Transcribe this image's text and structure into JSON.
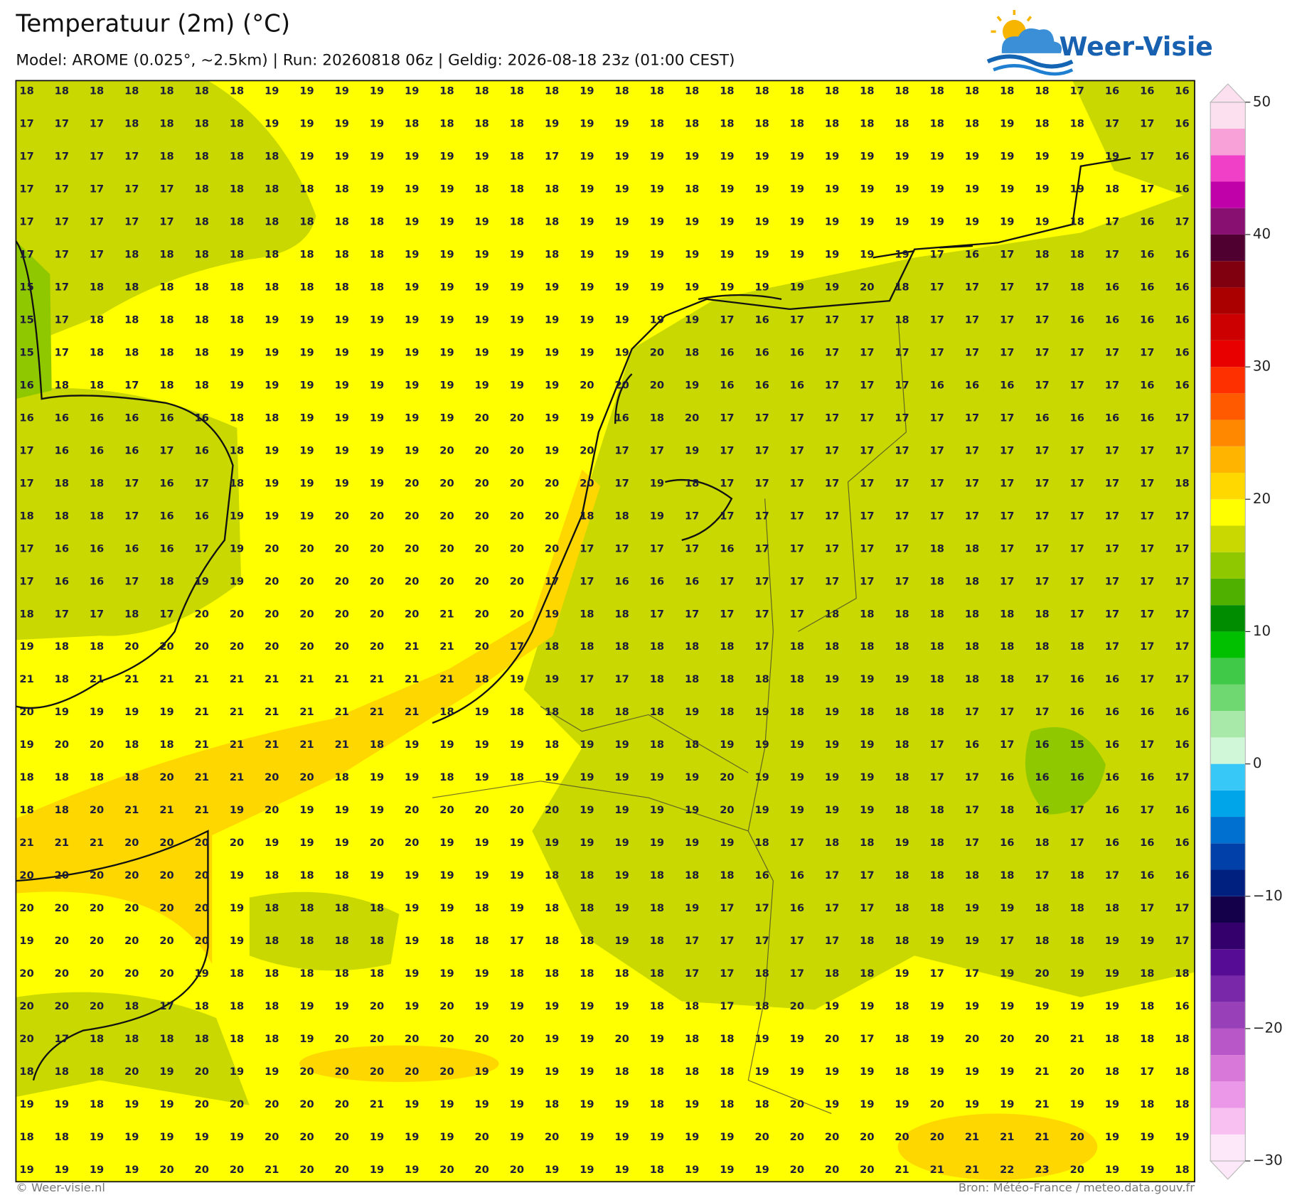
{
  "header": {
    "title": "Temperatuur (2m) (°C)",
    "subtitle": "Model: AROME (0.025°, ~2.5km)  |  Run: 20260818 06z  |  Geldig: 2026-08-18 23z (01:00 CEST)"
  },
  "logo": {
    "text": "Weer-Visie"
  },
  "grid_values": [
    [
      18,
      18,
      18,
      18,
      18,
      18,
      18,
      19,
      19,
      19,
      19,
      19,
      18,
      18,
      18,
      18,
      19,
      18,
      18,
      18,
      18,
      18,
      18,
      18,
      18,
      18,
      18,
      18,
      18,
      18,
      17,
      16,
      16,
      16
    ],
    [
      17,
      17,
      17,
      18,
      18,
      18,
      18,
      19,
      19,
      19,
      19,
      18,
      18,
      18,
      18,
      19,
      19,
      19,
      18,
      18,
      18,
      18,
      18,
      18,
      18,
      18,
      18,
      18,
      19,
      18,
      18,
      17,
      17,
      16
    ],
    [
      17,
      17,
      17,
      17,
      18,
      18,
      18,
      18,
      19,
      19,
      19,
      19,
      19,
      19,
      18,
      17,
      19,
      19,
      19,
      19,
      19,
      19,
      19,
      19,
      19,
      19,
      19,
      19,
      19,
      19,
      19,
      19,
      17,
      16
    ],
    [
      17,
      17,
      17,
      17,
      17,
      18,
      18,
      18,
      18,
      18,
      19,
      19,
      19,
      18,
      18,
      18,
      19,
      19,
      19,
      18,
      19,
      19,
      19,
      19,
      19,
      19,
      19,
      19,
      19,
      19,
      19,
      18,
      17,
      16
    ],
    [
      17,
      17,
      17,
      17,
      17,
      18,
      18,
      18,
      18,
      18,
      18,
      19,
      19,
      19,
      18,
      18,
      19,
      19,
      19,
      19,
      19,
      19,
      19,
      19,
      19,
      19,
      19,
      19,
      19,
      19,
      18,
      17,
      16,
      17
    ],
    [
      17,
      17,
      17,
      18,
      18,
      18,
      18,
      18,
      18,
      18,
      18,
      19,
      19,
      19,
      19,
      18,
      19,
      19,
      19,
      19,
      19,
      19,
      19,
      19,
      19,
      19,
      17,
      16,
      17,
      18,
      18,
      17,
      16,
      16
    ],
    [
      15,
      17,
      18,
      18,
      18,
      18,
      18,
      18,
      18,
      18,
      18,
      19,
      19,
      19,
      19,
      19,
      19,
      19,
      19,
      19,
      19,
      19,
      19,
      19,
      20,
      18,
      17,
      17,
      17,
      17,
      18,
      16,
      16,
      16
    ],
    [
      15,
      17,
      18,
      18,
      18,
      18,
      18,
      19,
      19,
      19,
      19,
      19,
      19,
      19,
      19,
      19,
      19,
      19,
      19,
      19,
      17,
      16,
      17,
      17,
      17,
      18,
      17,
      17,
      17,
      17,
      16,
      16,
      16,
      16
    ],
    [
      15,
      17,
      18,
      18,
      18,
      18,
      19,
      19,
      19,
      19,
      19,
      19,
      19,
      19,
      19,
      19,
      19,
      19,
      20,
      18,
      16,
      16,
      16,
      17,
      17,
      17,
      17,
      17,
      17,
      17,
      17,
      17,
      17,
      16
    ],
    [
      16,
      18,
      18,
      17,
      18,
      18,
      19,
      19,
      19,
      19,
      19,
      19,
      19,
      19,
      19,
      19,
      20,
      20,
      20,
      19,
      16,
      16,
      16,
      17,
      17,
      17,
      16,
      16,
      16,
      17,
      17,
      17,
      16,
      16
    ],
    [
      16,
      16,
      16,
      16,
      16,
      16,
      18,
      18,
      19,
      19,
      19,
      19,
      19,
      20,
      20,
      19,
      19,
      16,
      18,
      20,
      17,
      17,
      17,
      17,
      17,
      17,
      17,
      17,
      17,
      16,
      16,
      16,
      16,
      17
    ],
    [
      17,
      16,
      16,
      16,
      17,
      16,
      18,
      19,
      19,
      19,
      19,
      19,
      20,
      20,
      20,
      19,
      20,
      17,
      17,
      19,
      17,
      17,
      17,
      17,
      17,
      17,
      17,
      17,
      17,
      17,
      17,
      17,
      17,
      17
    ],
    [
      17,
      18,
      18,
      17,
      16,
      17,
      18,
      19,
      19,
      19,
      19,
      20,
      20,
      20,
      20,
      20,
      20,
      17,
      19,
      18,
      17,
      17,
      17,
      17,
      17,
      17,
      17,
      17,
      17,
      17,
      17,
      17,
      17,
      18
    ],
    [
      18,
      18,
      18,
      17,
      16,
      16,
      19,
      19,
      19,
      20,
      20,
      20,
      20,
      20,
      20,
      20,
      18,
      18,
      19,
      17,
      17,
      17,
      17,
      17,
      17,
      17,
      17,
      17,
      17,
      17,
      17,
      17,
      17,
      17
    ],
    [
      17,
      16,
      16,
      16,
      16,
      17,
      19,
      20,
      20,
      20,
      20,
      20,
      20,
      20,
      20,
      20,
      17,
      17,
      17,
      17,
      16,
      17,
      17,
      17,
      17,
      17,
      18,
      18,
      17,
      17,
      17,
      17,
      17,
      17
    ],
    [
      17,
      16,
      16,
      17,
      18,
      19,
      19,
      20,
      20,
      20,
      20,
      20,
      20,
      20,
      20,
      17,
      17,
      16,
      16,
      16,
      17,
      17,
      17,
      17,
      17,
      17,
      18,
      18,
      17,
      17,
      17,
      17,
      17,
      17
    ],
    [
      18,
      17,
      17,
      18,
      17,
      20,
      20,
      20,
      20,
      20,
      20,
      20,
      21,
      20,
      20,
      19,
      18,
      18,
      17,
      17,
      17,
      17,
      17,
      18,
      18,
      18,
      18,
      18,
      18,
      18,
      17,
      17,
      17,
      17
    ],
    [
      19,
      18,
      18,
      20,
      20,
      20,
      20,
      20,
      20,
      20,
      20,
      21,
      21,
      20,
      17,
      18,
      18,
      18,
      18,
      18,
      18,
      17,
      18,
      18,
      18,
      18,
      18,
      18,
      18,
      18,
      18,
      17,
      17,
      17
    ],
    [
      21,
      18,
      21,
      21,
      21,
      21,
      21,
      21,
      21,
      21,
      21,
      21,
      21,
      18,
      19,
      19,
      17,
      17,
      18,
      18,
      18,
      18,
      18,
      19,
      19,
      19,
      18,
      18,
      18,
      17,
      16,
      16,
      17,
      17
    ],
    [
      20,
      19,
      19,
      19,
      19,
      21,
      21,
      21,
      21,
      21,
      21,
      21,
      18,
      19,
      18,
      18,
      18,
      18,
      18,
      19,
      18,
      19,
      18,
      19,
      18,
      18,
      18,
      17,
      17,
      17,
      16,
      16,
      16,
      16
    ],
    [
      19,
      20,
      20,
      18,
      18,
      21,
      21,
      21,
      21,
      21,
      18,
      19,
      19,
      19,
      19,
      18,
      19,
      19,
      18,
      18,
      19,
      19,
      19,
      19,
      19,
      18,
      17,
      16,
      17,
      16,
      15,
      16,
      17,
      16
    ],
    [
      18,
      18,
      18,
      18,
      20,
      21,
      21,
      20,
      20,
      18,
      19,
      19,
      18,
      19,
      18,
      19,
      19,
      19,
      19,
      19,
      20,
      19,
      19,
      19,
      19,
      18,
      17,
      17,
      16,
      16,
      16,
      16,
      16,
      17
    ],
    [
      18,
      18,
      20,
      21,
      21,
      21,
      19,
      20,
      19,
      19,
      19,
      20,
      20,
      20,
      20,
      20,
      19,
      19,
      19,
      19,
      20,
      19,
      19,
      19,
      19,
      18,
      18,
      17,
      18,
      16,
      17,
      16,
      17,
      16
    ],
    [
      21,
      21,
      21,
      20,
      20,
      20,
      20,
      19,
      19,
      19,
      20,
      20,
      19,
      19,
      19,
      19,
      19,
      19,
      19,
      19,
      19,
      18,
      17,
      18,
      18,
      19,
      18,
      17,
      16,
      18,
      17,
      16,
      16,
      16
    ],
    [
      20,
      20,
      20,
      20,
      20,
      20,
      19,
      18,
      18,
      18,
      19,
      19,
      19,
      19,
      19,
      18,
      18,
      19,
      18,
      18,
      18,
      16,
      16,
      17,
      17,
      18,
      18,
      18,
      18,
      17,
      18,
      17,
      16,
      16
    ],
    [
      20,
      20,
      20,
      20,
      20,
      20,
      19,
      18,
      18,
      18,
      18,
      19,
      19,
      18,
      19,
      18,
      18,
      19,
      18,
      19,
      17,
      17,
      16,
      17,
      17,
      18,
      18,
      19,
      19,
      18,
      18,
      18,
      17,
      17
    ],
    [
      19,
      20,
      20,
      20,
      20,
      20,
      19,
      18,
      18,
      18,
      18,
      19,
      18,
      18,
      17,
      18,
      18,
      19,
      18,
      17,
      17,
      17,
      17,
      17,
      18,
      18,
      19,
      19,
      17,
      18,
      18,
      19,
      19,
      17
    ],
    [
      20,
      20,
      20,
      20,
      20,
      19,
      18,
      18,
      18,
      18,
      18,
      19,
      19,
      19,
      18,
      18,
      18,
      18,
      18,
      17,
      17,
      18,
      17,
      18,
      18,
      19,
      17,
      17,
      19,
      20,
      19,
      19,
      18,
      18
    ],
    [
      20,
      20,
      20,
      18,
      17,
      18,
      18,
      18,
      19,
      19,
      20,
      19,
      20,
      19,
      19,
      19,
      19,
      19,
      18,
      18,
      17,
      18,
      20,
      19,
      19,
      18,
      19,
      19,
      19,
      19,
      19,
      19,
      18,
      16
    ],
    [
      20,
      17,
      18,
      18,
      18,
      18,
      18,
      18,
      19,
      20,
      20,
      20,
      20,
      20,
      20,
      19,
      19,
      20,
      19,
      18,
      18,
      19,
      19,
      20,
      17,
      18,
      19,
      20,
      20,
      20,
      21,
      18,
      18,
      18
    ],
    [
      18,
      18,
      18,
      20,
      19,
      20,
      19,
      19,
      20,
      20,
      20,
      20,
      20,
      19,
      19,
      19,
      19,
      18,
      18,
      18,
      18,
      19,
      19,
      19,
      19,
      18,
      19,
      19,
      19,
      21,
      20,
      18,
      17,
      18
    ],
    [
      19,
      19,
      18,
      19,
      19,
      20,
      20,
      20,
      20,
      20,
      21,
      19,
      19,
      19,
      19,
      18,
      19,
      19,
      18,
      19,
      18,
      18,
      20,
      19,
      19,
      19,
      20,
      19,
      19,
      21,
      19,
      19,
      18,
      18
    ],
    [
      18,
      18,
      19,
      19,
      19,
      19,
      19,
      20,
      20,
      20,
      19,
      19,
      19,
      20,
      19,
      20,
      19,
      19,
      19,
      19,
      19,
      20,
      20,
      20,
      20,
      20,
      20,
      21,
      21,
      21,
      20,
      19,
      19,
      19
    ],
    [
      19,
      19,
      19,
      19,
      20,
      20,
      20,
      21,
      20,
      20,
      19,
      19,
      20,
      20,
      20,
      19,
      19,
      19,
      18,
      19,
      19,
      19,
      20,
      20,
      20,
      21,
      21,
      21,
      22,
      23,
      20,
      19,
      19,
      18
    ]
  ],
  "colorbar": {
    "levels": [
      -30,
      -28,
      -26,
      -24,
      -22,
      -20,
      -18,
      -16,
      -14,
      -12,
      -10,
      -8,
      -6,
      -4,
      -2,
      0,
      2,
      4,
      6,
      8,
      10,
      12,
      14,
      16,
      18,
      20,
      22,
      24,
      26,
      28,
      30,
      32,
      34,
      36,
      38,
      40,
      42,
      44,
      46,
      48,
      50
    ],
    "colors": [
      "#fde8fa",
      "#f8c0f0",
      "#ec98e8",
      "#d878d8",
      "#b858c8",
      "#9840b8",
      "#7828a8",
      "#560c94",
      "#34006c",
      "#14004a",
      "#002080",
      "#0040a8",
      "#0070d0",
      "#00a4e8",
      "#38c8f8",
      "#d0f8d8",
      "#a8e8a8",
      "#70d870",
      "#40c848",
      "#00c000",
      "#008c00",
      "#50b000",
      "#90c800",
      "#c8d800",
      "#ffff00",
      "#ffd800",
      "#ffb400",
      "#ff8800",
      "#ff5a00",
      "#ff3000",
      "#e80000",
      "#cc0000",
      "#aa0000",
      "#800010",
      "#500030",
      "#881070",
      "#c000a8",
      "#f040c8",
      "#f8a0d8",
      "#fde0f0"
    ],
    "ticks": [
      {
        "value": -30,
        "label": "−30"
      },
      {
        "value": -20,
        "label": "−20"
      },
      {
        "value": -10,
        "label": "−10"
      },
      0,
      10,
      20,
      30,
      40,
      50
    ]
  },
  "footer": {
    "left": "© Weer-visie.nl",
    "right": "Bron: Météo-France / meteo.data.gouv.fr"
  }
}
